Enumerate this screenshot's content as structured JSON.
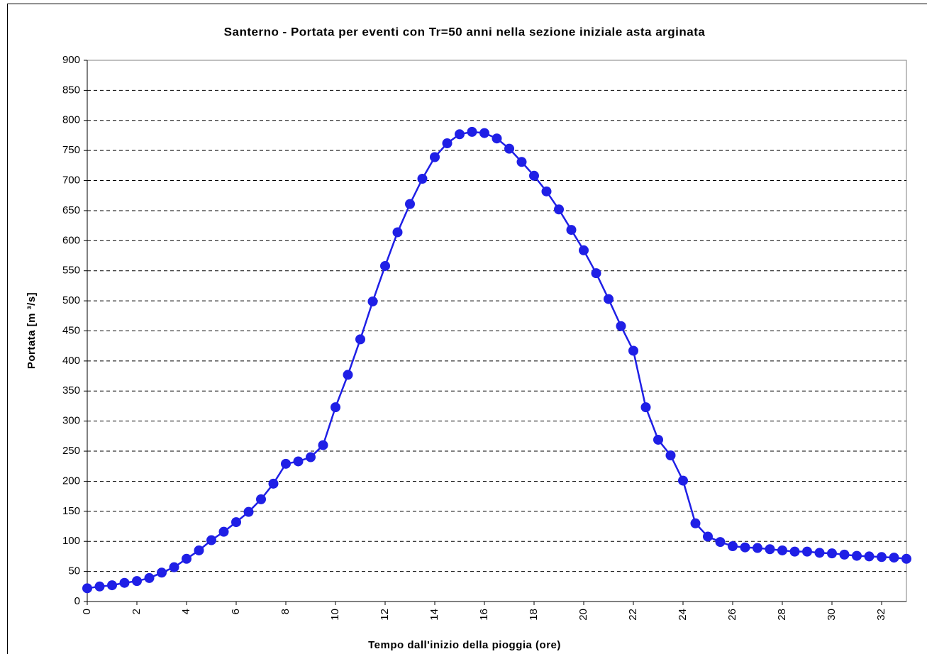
{
  "chart_data": {
    "type": "line",
    "title": "Santerno - Portata per eventi con Tr=50 anni nella sezione iniziale asta arginata",
    "x_label": "Tempo dall'inizio della pioggia (ore)",
    "y_label": "Portata [m ³/s]",
    "x": [
      0,
      0.5,
      1,
      1.5,
      2,
      2.5,
      3,
      3.5,
      4,
      4.5,
      5,
      5.5,
      6,
      6.5,
      7,
      7.5,
      8,
      8.5,
      9,
      9.5,
      10,
      10.5,
      11,
      11.5,
      12,
      12.5,
      13,
      13.5,
      14,
      14.5,
      15,
      15.5,
      16,
      16.5,
      17,
      17.5,
      18,
      18.5,
      19,
      19.5,
      20,
      20.5,
      21,
      21.5,
      22,
      22.5,
      23,
      23.5,
      24,
      24.5,
      25,
      25.5,
      26,
      26.5,
      27,
      27.5,
      28,
      28.5,
      29,
      29.5,
      30,
      30.5,
      31,
      31.5,
      32,
      32.5,
      33
    ],
    "series": [
      {
        "name": "Portata",
        "color": "#1f1fe6",
        "values": [
          22,
          25,
          27,
          31,
          34,
          39,
          48,
          57,
          71,
          85,
          102,
          116,
          132,
          149,
          170,
          196,
          229,
          233,
          240,
          260,
          323,
          377,
          436,
          499,
          558,
          614,
          661,
          703,
          739,
          762,
          777,
          781,
          779,
          770,
          753,
          731,
          708,
          682,
          652,
          618,
          584,
          546,
          503,
          458,
          417,
          323,
          269,
          243,
          201,
          130,
          108,
          99,
          92,
          90,
          89,
          87,
          85,
          83,
          83,
          81,
          80,
          78,
          76,
          75,
          74,
          73,
          71
        ]
      }
    ],
    "xlim": [
      0,
      33
    ],
    "xticks": [
      0,
      2,
      4,
      6,
      8,
      10,
      12,
      14,
      16,
      18,
      20,
      22,
      24,
      26,
      28,
      30,
      32
    ],
    "ylim": [
      0,
      900
    ],
    "yticks": [
      0,
      50,
      100,
      150,
      200,
      250,
      300,
      350,
      400,
      450,
      500,
      550,
      600,
      650,
      700,
      750,
      800,
      850,
      900
    ],
    "grid": true
  }
}
